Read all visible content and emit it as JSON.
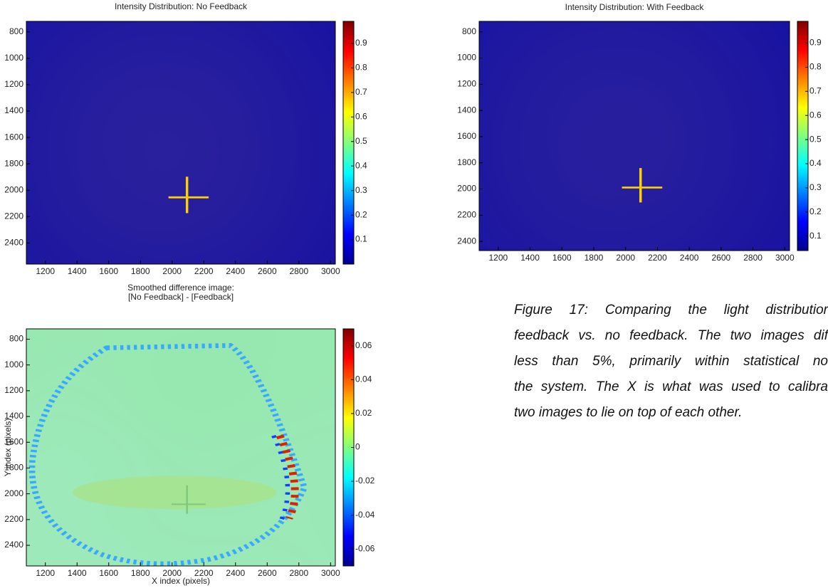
{
  "chart_data": [
    {
      "type": "heatmap",
      "title": "Intensity Distribution: No Feedback",
      "xlim": [
        1080,
        3030
      ],
      "xticks": [
        1200,
        1400,
        1600,
        1800,
        2000,
        2200,
        2400,
        2600,
        2800,
        3000
      ],
      "ylim": [
        720,
        2560
      ],
      "yticks": [
        800,
        1000,
        1200,
        1400,
        1600,
        1800,
        2000,
        2200,
        2400
      ],
      "clim": [
        0,
        0.99
      ],
      "cticks": [
        0.1,
        0.2,
        0.3,
        0.4,
        0.5,
        0.6,
        0.7,
        0.8,
        0.9
      ],
      "colormap": "jet"
    },
    {
      "type": "heatmap",
      "title": "Intensity Distribution: With Feedback",
      "xlim": [
        1080,
        3030
      ],
      "xticks": [
        1200,
        1400,
        1600,
        1800,
        2000,
        2200,
        2400,
        2600,
        2800,
        3000
      ],
      "ylim": [
        720,
        2470
      ],
      "yticks": [
        800,
        1000,
        1200,
        1400,
        1600,
        1800,
        2000,
        2200,
        2400
      ],
      "clim": [
        0.04,
        0.99
      ],
      "cticks": [
        0.1,
        0.2,
        0.3,
        0.4,
        0.5,
        0.6,
        0.7,
        0.8,
        0.9
      ],
      "colormap": "jet"
    },
    {
      "type": "heatmap",
      "title": [
        "Smoothed difference image:",
        "[No Feedback] - [Feedback]"
      ],
      "x_label": "X index (pixels)",
      "y_label": "Y index (pixels)",
      "xlim": [
        1080,
        3030
      ],
      "xticks": [
        1200,
        1400,
        1600,
        1800,
        2000,
        2200,
        2400,
        2600,
        2800,
        3000
      ],
      "ylim": [
        720,
        2560
      ],
      "yticks": [
        800,
        1000,
        1200,
        1400,
        1600,
        1800,
        2000,
        2200,
        2400
      ],
      "clim": [
        -0.07,
        0.07
      ],
      "cticks": [
        -0.06,
        -0.04,
        -0.02,
        0,
        0.02,
        0.04,
        0.06
      ],
      "colormap": "jet"
    }
  ],
  "caption": {
    "lines": [
      "Figure 17: Comparing the light distributior",
      "feedback vs. no feedback. The two images dif",
      "less than 5%, primarily within statistical no",
      "the system. The X is what was used to calibra",
      "two images to lie on top of each other."
    ]
  }
}
